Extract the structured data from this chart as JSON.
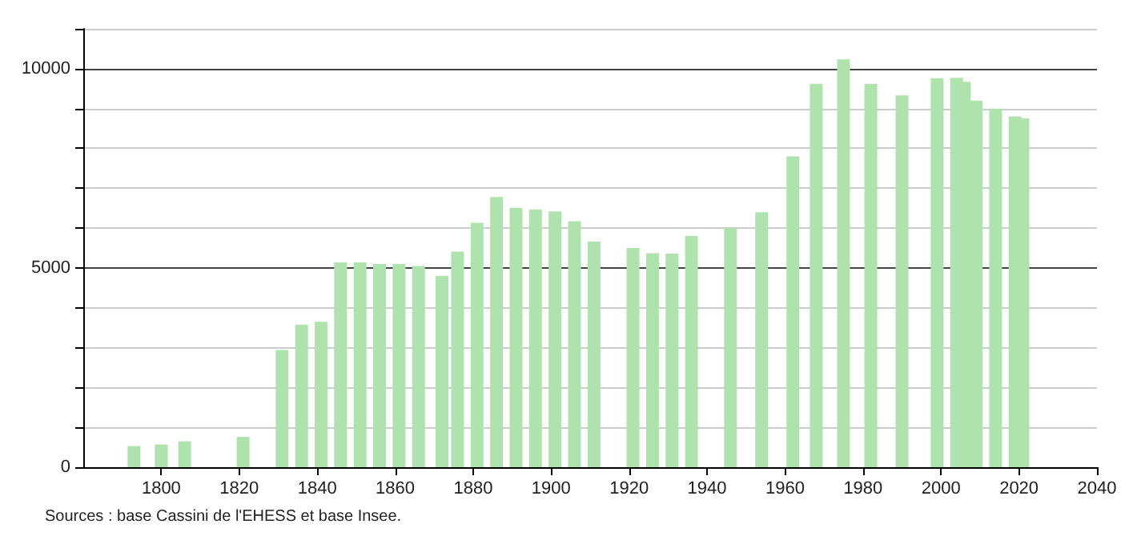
{
  "chart_data": {
    "type": "bar",
    "x": [
      1793,
      1800,
      1806,
      1821,
      1831,
      1836,
      1841,
      1846,
      1851,
      1856,
      1861,
      1866,
      1872,
      1876,
      1881,
      1886,
      1891,
      1896,
      1901,
      1906,
      1911,
      1921,
      1926,
      1931,
      1936,
      1946,
      1954,
      1962,
      1968,
      1975,
      1982,
      1990,
      1999,
      2004,
      2006,
      2009,
      2014,
      2019,
      2021
    ],
    "values": [
      530,
      570,
      650,
      760,
      2940,
      3580,
      3650,
      5140,
      5140,
      5100,
      5100,
      5050,
      4800,
      5410,
      6130,
      6780,
      6510,
      6470,
      6420,
      6170,
      5660,
      5500,
      5370,
      5360,
      5800,
      6000,
      6400,
      7800,
      9620,
      10230,
      9620,
      9330,
      9760,
      9770,
      9670,
      9200,
      9000,
      8800,
      8750
    ],
    "color": "#aee3ae",
    "xlim": [
      1780,
      2040
    ],
    "xticks": [
      1800,
      1820,
      1840,
      1860,
      1880,
      1900,
      1920,
      1940,
      1960,
      1980,
      2000,
      2020,
      2040
    ],
    "ylim": [
      0,
      11000
    ],
    "yticks": [
      0,
      {
        "value": 1000,
        "label": null
      },
      {
        "value": 2000,
        "label": null
      },
      {
        "value": 3000,
        "label": null
      },
      {
        "value": 4000,
        "label": null
      },
      5000,
      {
        "value": 6000,
        "label": null
      },
      {
        "value": 7000,
        "label": null
      },
      {
        "value": 8000,
        "label": null
      },
      {
        "value": 9000,
        "label": null
      },
      10000,
      {
        "value": 11000,
        "label": null
      }
    ],
    "grid": "y",
    "annotations": [
      "Sources : base Cassini de l'EHESS et base Insee."
    ]
  }
}
